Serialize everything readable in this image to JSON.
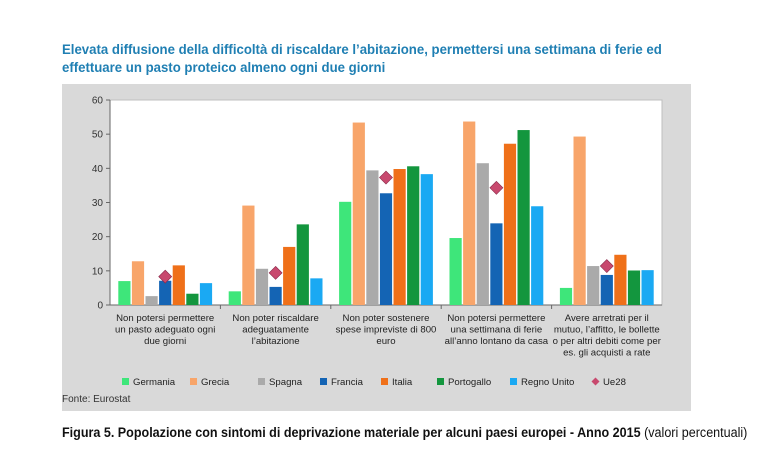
{
  "title": "Elevata diffusione della difficoltà di riscaldare l’abitazione, permettersi una settimana di ferie ed effettuare un pasto proteico almeno ogni due giorni",
  "source": "Fonte: Eurostat",
  "caption": {
    "bold": "Figura 5. Popolazione con sintomi di deprivazione materiale per alcuni paesi europei - Anno 2015",
    "normal": " (valori percentuali)"
  },
  "colors": {
    "Germania": "#3ee67a",
    "Grecia": "#f8a56a",
    "Spagna": "#aaaaaa",
    "Francia": "#1464b4",
    "Italia": "#ef7019",
    "Portogallo": "#13963e",
    "Regno Unito": "#1aa9f3",
    "Ue28": "#c8496e"
  },
  "chart_data": {
    "type": "bar",
    "title": "Elevata diffusione della difficoltà di riscaldare l’abitazione, permettersi una settimana di ferie ed effettuare un pasto proteico almeno ogni due giorni",
    "categories": [
      [
        "Non potersi permettere",
        "un pasto adeguato ogni",
        "due giorni"
      ],
      [
        "Non poter riscaldare",
        "adeguatamente",
        "l’abitazione"
      ],
      [
        "Non poter sostenere",
        "spese impreviste di 800",
        "euro"
      ],
      [
        "Non potersi permettere",
        "una settimana di ferie",
        "all’anno lontano da casa"
      ],
      [
        "Avere arretrati per il",
        "mutuo, l’affitto, le bollette",
        "o per altri debiti come per",
        "es. gli acquisti a rate"
      ]
    ],
    "series": [
      {
        "name": "Germania",
        "values": [
          7.0,
          4.0,
          30.2,
          19.6,
          5.0
        ]
      },
      {
        "name": "Grecia",
        "values": [
          12.8,
          29.1,
          53.4,
          53.7,
          49.3
        ]
      },
      {
        "name": "Spagna",
        "values": [
          2.6,
          10.6,
          39.4,
          41.5,
          11.4
        ]
      },
      {
        "name": "Francia",
        "values": [
          7.1,
          5.3,
          32.7,
          23.9,
          8.8
        ]
      },
      {
        "name": "Italia",
        "values": [
          11.6,
          17.0,
          39.8,
          47.2,
          14.7
        ]
      },
      {
        "name": "Portogallo",
        "values": [
          3.3,
          23.6,
          40.6,
          51.2,
          10.1
        ]
      },
      {
        "name": "Regno Unito",
        "values": [
          6.4,
          7.8,
          38.3,
          28.9,
          10.2
        ]
      }
    ],
    "markers": {
      "name": "Ue28",
      "shape": "diamond",
      "values": [
        8.3,
        9.4,
        37.3,
        34.3,
        11.4
      ]
    },
    "ylim": [
      0,
      60
    ],
    "yticks": [
      0,
      10,
      20,
      30,
      40,
      50,
      60
    ],
    "grid": false,
    "legend": "bottom",
    "xlabel": "",
    "ylabel": ""
  }
}
